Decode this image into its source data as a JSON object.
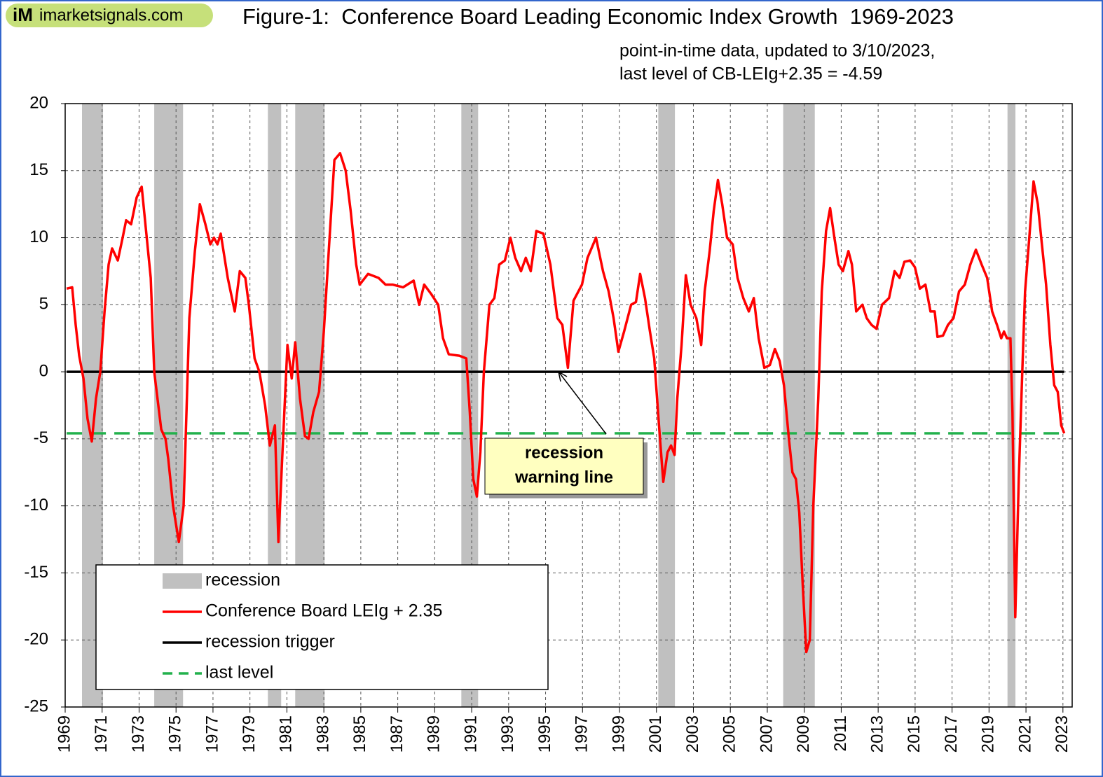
{
  "chart_data": {
    "type": "line",
    "logo_mark": "iM",
    "logo": "imarketsignals.com",
    "title": "Figure-1:  Conference Board Leading Economic Index Growth  1969-2023",
    "subtitle": [
      "point-in-time data, updated to 3/10/2023,",
      "last level of CB-LEIg+2.35 = -4.59"
    ],
    "annotation": [
      "recession",
      "warning line"
    ],
    "xlim": [
      1969,
      2023.5
    ],
    "xticks": [
      1969,
      1971,
      1973,
      1975,
      1977,
      1979,
      1981,
      1983,
      1985,
      1987,
      1989,
      1991,
      1993,
      1995,
      1997,
      1999,
      2001,
      2003,
      2005,
      2007,
      2009,
      2011,
      2013,
      2015,
      2017,
      2019,
      2021,
      2023
    ],
    "ylim": [
      -25,
      20
    ],
    "yticks": [
      -25,
      -20,
      -15,
      -10,
      -5,
      0,
      5,
      10,
      15,
      20
    ],
    "grid": true,
    "recessions": {
      "name": "recession",
      "color": "#c0c0c0",
      "spans": [
        [
          1969.91,
          1971.05
        ],
        [
          1973.82,
          1975.38
        ],
        [
          1979.97,
          1980.69
        ],
        [
          1981.45,
          1983.04
        ],
        [
          1990.44,
          1991.35
        ],
        [
          2001.1,
          2002.0
        ],
        [
          2007.86,
          2009.57
        ],
        [
          2020.0,
          2020.43
        ]
      ]
    },
    "reference_lines": [
      {
        "name": "recession trigger",
        "value": 0,
        "color": "#000000",
        "dashed": false
      },
      {
        "name": "last level",
        "value": -4.59,
        "color": "#22b14c",
        "dashed": true
      }
    ],
    "x": [
      1969.08,
      1969.38,
      1969.57,
      1969.76,
      1969.99,
      1970.21,
      1970.44,
      1970.67,
      1970.9,
      1971.13,
      1971.35,
      1971.54,
      1971.85,
      1972.11,
      1972.3,
      1972.57,
      1972.87,
      1973.14,
      1973.63,
      1973.82,
      1974.2,
      1974.43,
      1974.58,
      1974.84,
      1975.15,
      1975.41,
      1975.72,
      1976.02,
      1976.29,
      1976.59,
      1976.86,
      1977.05,
      1977.24,
      1977.42,
      1977.8,
      1978.18,
      1978.45,
      1978.75,
      1978.94,
      1979.25,
      1979.51,
      1979.82,
      1980.08,
      1980.35,
      1980.54,
      1980.76,
      1981.03,
      1981.26,
      1981.45,
      1981.71,
      1981.98,
      1982.17,
      1982.43,
      1982.74,
      1983.0,
      1983.31,
      1983.57,
      1983.88,
      1984.18,
      1984.45,
      1984.75,
      1984.94,
      1985.39,
      1985.96,
      1986.34,
      1986.72,
      1987.29,
      1987.86,
      1988.16,
      1988.43,
      1988.81,
      1989.19,
      1989.45,
      1989.76,
      1990.33,
      1990.71,
      1990.9,
      1991.09,
      1991.28,
      1991.47,
      1991.66,
      1991.96,
      1992.23,
      1992.49,
      1992.8,
      1993.1,
      1993.36,
      1993.67,
      1993.93,
      1994.2,
      1994.5,
      1994.88,
      1995.26,
      1995.64,
      1995.91,
      1996.21,
      1996.51,
      1996.97,
      1997.27,
      1997.73,
      1998.11,
      1998.41,
      1998.68,
      1998.94,
      1999.25,
      1999.63,
      1999.89,
      2000.12,
      2000.38,
      2000.65,
      2000.88,
      2001.14,
      2001.37,
      2001.6,
      2001.79,
      2001.98,
      2002.13,
      2002.36,
      2002.59,
      2002.85,
      2003.16,
      2003.42,
      2003.61,
      2003.88,
      2004.1,
      2004.33,
      2004.56,
      2004.82,
      2005.13,
      2005.39,
      2005.7,
      2006.0,
      2006.27,
      2006.53,
      2006.84,
      2007.14,
      2007.41,
      2007.67,
      2007.9,
      2008.17,
      2008.36,
      2008.55,
      2008.73,
      2008.92,
      2009.11,
      2009.3,
      2009.49,
      2009.76,
      2009.95,
      2010.18,
      2010.4,
      2010.63,
      2010.86,
      2011.09,
      2011.39,
      2011.58,
      2011.81,
      2012.15,
      2012.38,
      2012.64,
      2012.91,
      2013.21,
      2013.59,
      2013.89,
      2014.16,
      2014.42,
      2014.73,
      2014.99,
      2015.26,
      2015.56,
      2015.83,
      2016.06,
      2016.21,
      2016.51,
      2016.78,
      2017.08,
      2017.38,
      2017.69,
      2017.99,
      2018.29,
      2018.6,
      2018.9,
      2019.17,
      2019.43,
      2019.66,
      2019.81,
      2019.97,
      2020.16,
      2020.27,
      2020.42,
      2020.61,
      2020.8,
      2020.95,
      2021.18,
      2021.41,
      2021.64,
      2021.86,
      2022.09,
      2022.32,
      2022.53,
      2022.72,
      2022.91,
      2023.07
    ],
    "series": [
      {
        "name": "Conference Board LEIg + 2.35",
        "color": "#ff0000",
        "values": [
          6.2,
          6.3,
          3.5,
          1.2,
          -0.5,
          -3.5,
          -5.2,
          -2,
          0,
          4.5,
          8,
          9.2,
          8.3,
          10,
          11.3,
          11,
          13,
          13.8,
          7,
          0,
          -4.3,
          -5,
          -6.5,
          -10,
          -12.7,
          -10,
          4,
          9,
          12.5,
          11,
          9.5,
          10,
          9.5,
          10.3,
          7,
          4.5,
          7.5,
          7,
          5,
          1,
          0,
          -2.5,
          -5.5,
          -4,
          -12.7,
          -6,
          2,
          -0.5,
          2.2,
          -2,
          -4.8,
          -5,
          -3,
          -1.5,
          3,
          10,
          15.8,
          16.3,
          15,
          12,
          8,
          6.5,
          7.3,
          7,
          6.5,
          6.5,
          6.3,
          6.8,
          5,
          6.5,
          5.8,
          5,
          2.5,
          1.3,
          1.2,
          1,
          -3,
          -8,
          -9.3,
          -6,
          0,
          5,
          5.5,
          8,
          8.3,
          10,
          8.5,
          7.5,
          8.5,
          7.5,
          10.5,
          10.3,
          8,
          4,
          3.5,
          0.3,
          5.3,
          6.5,
          8.5,
          10,
          7.5,
          6,
          4,
          1.5,
          3,
          5,
          5.2,
          7.3,
          5.5,
          3,
          1,
          -4,
          -8.2,
          -6,
          -5.5,
          -6.2,
          -2,
          2,
          7.2,
          5,
          4,
          2,
          6,
          9,
          12,
          14.3,
          12.5,
          10,
          9.5,
          7,
          5.5,
          4.5,
          5.5,
          2.5,
          0.3,
          0.5,
          1.7,
          0.8,
          -1,
          -5,
          -7.5,
          -8,
          -10.5,
          -16,
          -20.9,
          -20,
          -10,
          -2,
          6,
          10.5,
          12.2,
          10,
          8,
          7.5,
          9,
          8,
          4.5,
          5,
          4,
          3.5,
          3.2,
          5,
          5.5,
          7.5,
          7,
          8.2,
          8.3,
          7.8,
          6.2,
          6.5,
          4.5,
          4.5,
          2.6,
          2.7,
          3.5,
          4,
          6,
          6.5,
          8,
          9.1,
          8,
          7,
          4.5,
          3.5,
          2.5,
          3,
          2.5,
          2.5,
          -3,
          -18.3,
          -8,
          0,
          6,
          10,
          14.2,
          12.5,
          9.5,
          6.5,
          2,
          -1,
          -1.5,
          -4,
          -4.59
        ]
      }
    ]
  }
}
